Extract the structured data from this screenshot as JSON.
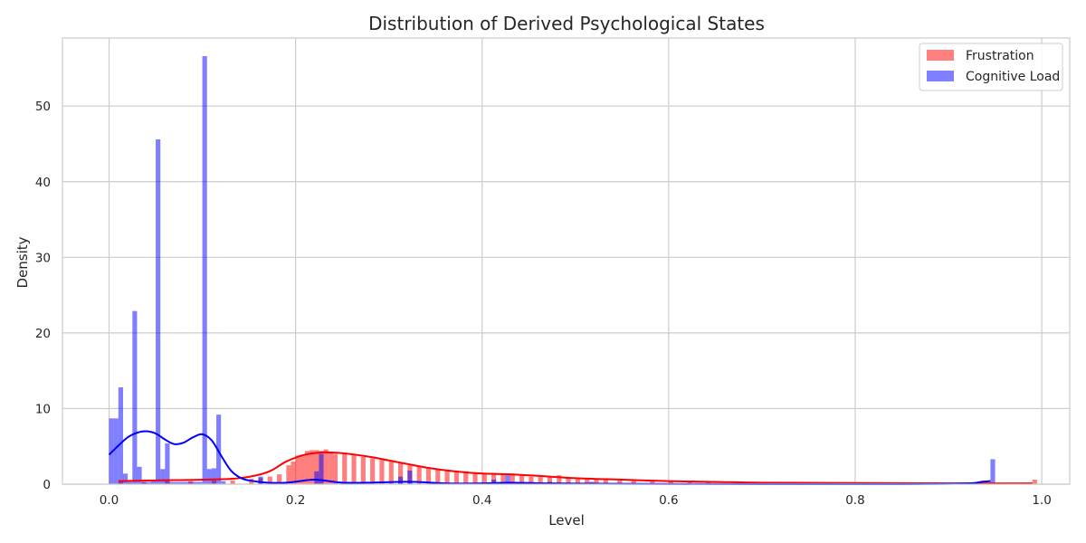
{
  "chart_data": {
    "type": "histogram",
    "title": "Distribution of Derived Psychological States",
    "xlabel": "Level",
    "ylabel": "Density",
    "xlim": [
      -0.05,
      1.03
    ],
    "ylim": [
      0,
      59
    ],
    "xticks": [
      0.0,
      0.2,
      0.4,
      0.6,
      0.8,
      1.0
    ],
    "xtick_labels": [
      "0.0",
      "0.2",
      "0.4",
      "0.6",
      "0.8",
      "1.0"
    ],
    "yticks": [
      0,
      10,
      20,
      30,
      40,
      50
    ],
    "ytick_labels": [
      "0",
      "10",
      "20",
      "30",
      "40",
      "50"
    ],
    "grid": true,
    "legend_position": "top-right",
    "bin_width": 0.005,
    "series": [
      {
        "name": "Frustration",
        "color": "#ff0000",
        "fill_opacity": 0.5,
        "histogram": [
          [
            0.01,
            0.3
          ],
          [
            0.035,
            0.3
          ],
          [
            0.06,
            0.4
          ],
          [
            0.085,
            0.4
          ],
          [
            0.11,
            0.5
          ],
          [
            0.13,
            0.5
          ],
          [
            0.15,
            0.7
          ],
          [
            0.16,
            0.8
          ],
          [
            0.17,
            1.0
          ],
          [
            0.18,
            1.3
          ],
          [
            0.19,
            2.5
          ],
          [
            0.195,
            3.0
          ],
          [
            0.2,
            3.8
          ],
          [
            0.205,
            3.9
          ],
          [
            0.21,
            4.4
          ],
          [
            0.215,
            4.5
          ],
          [
            0.22,
            4.5
          ],
          [
            0.225,
            4.4
          ],
          [
            0.23,
            4.6
          ],
          [
            0.235,
            4.3
          ],
          [
            0.24,
            4.0
          ],
          [
            0.25,
            4.0
          ],
          [
            0.26,
            3.8
          ],
          [
            0.27,
            3.6
          ],
          [
            0.28,
            3.4
          ],
          [
            0.29,
            3.2
          ],
          [
            0.3,
            3.0
          ],
          [
            0.31,
            2.8
          ],
          [
            0.32,
            2.5
          ],
          [
            0.33,
            2.3
          ],
          [
            0.34,
            2.1
          ],
          [
            0.35,
            2.0
          ],
          [
            0.36,
            1.9
          ],
          [
            0.37,
            1.8
          ],
          [
            0.38,
            1.7
          ],
          [
            0.39,
            1.5
          ],
          [
            0.4,
            1.5
          ],
          [
            0.41,
            1.5
          ],
          [
            0.42,
            1.4
          ],
          [
            0.43,
            1.4
          ],
          [
            0.44,
            1.2
          ],
          [
            0.45,
            1.0
          ],
          [
            0.46,
            1.0
          ],
          [
            0.47,
            1.0
          ],
          [
            0.48,
            1.2
          ],
          [
            0.49,
            0.9
          ],
          [
            0.5,
            0.9
          ],
          [
            0.51,
            0.7
          ],
          [
            0.52,
            0.6
          ],
          [
            0.53,
            0.6
          ],
          [
            0.545,
            0.5
          ],
          [
            0.56,
            0.5
          ],
          [
            0.58,
            0.4
          ],
          [
            0.6,
            0.4
          ],
          [
            0.62,
            0.3
          ],
          [
            0.64,
            0.3
          ],
          [
            0.67,
            0.3
          ],
          [
            0.7,
            0.2
          ],
          [
            0.73,
            0.2
          ],
          [
            0.76,
            0.2
          ],
          [
            0.79,
            0.2
          ],
          [
            0.82,
            0.2
          ],
          [
            0.85,
            0.2
          ],
          [
            0.88,
            0.2
          ],
          [
            0.91,
            0.2
          ],
          [
            0.94,
            0.2
          ],
          [
            0.96,
            0.2
          ],
          [
            0.99,
            0.6
          ]
        ],
        "kde": [
          [
            0.01,
            0.4
          ],
          [
            0.05,
            0.5
          ],
          [
            0.1,
            0.6
          ],
          [
            0.14,
            0.8
          ],
          [
            0.17,
            1.6
          ],
          [
            0.19,
            3.0
          ],
          [
            0.21,
            3.9
          ],
          [
            0.23,
            4.2
          ],
          [
            0.25,
            4.1
          ],
          [
            0.28,
            3.6
          ],
          [
            0.31,
            2.9
          ],
          [
            0.34,
            2.2
          ],
          [
            0.37,
            1.7
          ],
          [
            0.4,
            1.4
          ],
          [
            0.43,
            1.3
          ],
          [
            0.46,
            1.1
          ],
          [
            0.5,
            0.8
          ],
          [
            0.55,
            0.6
          ],
          [
            0.6,
            0.4
          ],
          [
            0.65,
            0.3
          ],
          [
            0.7,
            0.2
          ],
          [
            0.8,
            0.15
          ],
          [
            0.9,
            0.1
          ],
          [
            0.99,
            0.1
          ]
        ]
      },
      {
        "name": "Cognitive Load",
        "color": "#0000ff",
        "fill_opacity": 0.5,
        "histogram": [
          [
            0.0,
            8.7
          ],
          [
            0.005,
            8.7
          ],
          [
            0.01,
            12.8
          ],
          [
            0.015,
            1.4
          ],
          [
            0.02,
            0.3
          ],
          [
            0.025,
            22.9
          ],
          [
            0.03,
            2.3
          ],
          [
            0.035,
            0.3
          ],
          [
            0.04,
            0.3
          ],
          [
            0.045,
            0.5
          ],
          [
            0.05,
            45.6
          ],
          [
            0.055,
            2.0
          ],
          [
            0.06,
            5.4
          ],
          [
            0.065,
            0.3
          ],
          [
            0.07,
            0.3
          ],
          [
            0.075,
            0.3
          ],
          [
            0.08,
            0.3
          ],
          [
            0.085,
            0.3
          ],
          [
            0.09,
            0.3
          ],
          [
            0.095,
            0.3
          ],
          [
            0.1,
            56.6
          ],
          [
            0.105,
            2.0
          ],
          [
            0.11,
            2.1
          ],
          [
            0.115,
            9.2
          ],
          [
            0.12,
            0.4
          ],
          [
            0.16,
            1.0
          ],
          [
            0.22,
            1.7
          ],
          [
            0.225,
            4.0
          ],
          [
            0.31,
            1.0
          ],
          [
            0.32,
            1.8
          ],
          [
            0.41,
            0.6
          ],
          [
            0.425,
            1.4
          ],
          [
            0.47,
            0.3
          ],
          [
            0.515,
            0.3
          ],
          [
            0.945,
            3.3
          ]
        ],
        "kde": [
          [
            0.0,
            3.9
          ],
          [
            0.01,
            5.1
          ],
          [
            0.02,
            6.2
          ],
          [
            0.03,
            6.8
          ],
          [
            0.04,
            7.0
          ],
          [
            0.05,
            6.7
          ],
          [
            0.06,
            5.9
          ],
          [
            0.07,
            5.3
          ],
          [
            0.08,
            5.5
          ],
          [
            0.09,
            6.2
          ],
          [
            0.1,
            6.6
          ],
          [
            0.11,
            5.8
          ],
          [
            0.12,
            3.8
          ],
          [
            0.13,
            1.9
          ],
          [
            0.14,
            0.9
          ],
          [
            0.15,
            0.5
          ],
          [
            0.17,
            0.2
          ],
          [
            0.19,
            0.2
          ],
          [
            0.21,
            0.5
          ],
          [
            0.22,
            0.6
          ],
          [
            0.23,
            0.5
          ],
          [
            0.25,
            0.2
          ],
          [
            0.28,
            0.2
          ],
          [
            0.31,
            0.3
          ],
          [
            0.33,
            0.3
          ],
          [
            0.36,
            0.1
          ],
          [
            0.4,
            0.1
          ],
          [
            0.43,
            0.2
          ],
          [
            0.47,
            0.1
          ],
          [
            0.55,
            0.05
          ],
          [
            0.7,
            0.0
          ],
          [
            0.85,
            0.0
          ],
          [
            0.92,
            0.1
          ],
          [
            0.935,
            0.3
          ],
          [
            0.945,
            0.4
          ]
        ]
      }
    ]
  }
}
